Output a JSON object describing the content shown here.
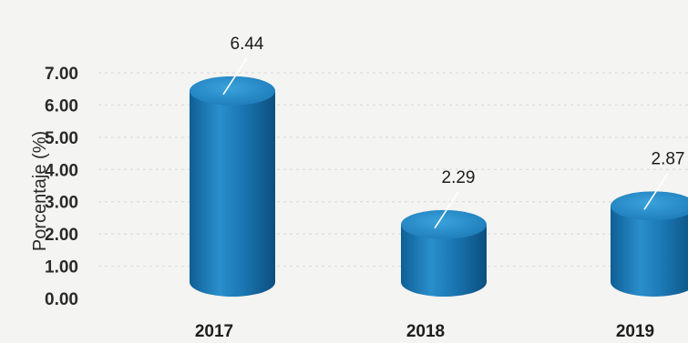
{
  "chart_data": {
    "type": "bar",
    "categories": [
      "2017",
      "2018",
      "2019"
    ],
    "values": [
      6.44,
      2.29,
      2.87
    ],
    "data_labels": [
      "6.44",
      "2.29",
      "2.87"
    ],
    "ylabel": "Porcentaje (%)",
    "ylim": [
      0,
      7
    ],
    "y_ticks": [
      "0.00",
      "1.00",
      "2.00",
      "3.00",
      "4.00",
      "5.00",
      "6.00",
      "7.00"
    ],
    "grid": true,
    "legend": "none",
    "bar_shape": "cylinder",
    "bar_color": "#1b78b4"
  }
}
